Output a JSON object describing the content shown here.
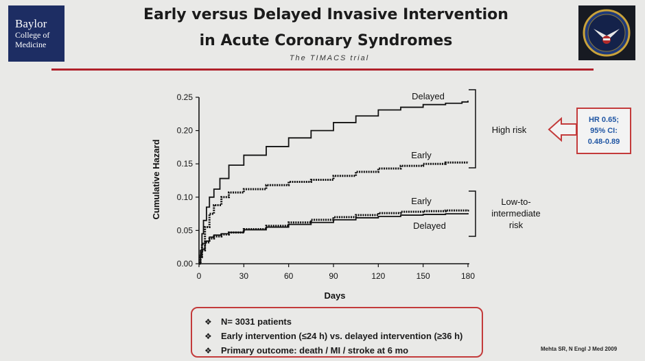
{
  "header": {
    "logo_left": {
      "line1": "Baylor",
      "line2": "College of",
      "line3": "Medicine"
    },
    "logo_right_icon": "veterans-affairs-seal-icon",
    "title_line1": "Early versus Delayed Invasive Intervention",
    "title_line2": "in Acute Coronary Syndromes",
    "subtitle": "The TIMACS trial",
    "accent_color": "#b0202a"
  },
  "chart_data": {
    "type": "line",
    "xlabel": "Days",
    "ylabel": "Cumulative Hazard",
    "xlim": [
      0,
      180
    ],
    "ylim": [
      0,
      0.25
    ],
    "xticks": [
      0,
      30,
      60,
      90,
      120,
      150,
      180
    ],
    "yticks": [
      0.0,
      0.05,
      0.1,
      0.15,
      0.2,
      0.25
    ],
    "ytick_labels": [
      "0.00",
      "0.05",
      "0.10",
      "0.15",
      "0.20",
      "0.25"
    ],
    "grid": false,
    "series": [
      {
        "name": "Delayed",
        "group": "High risk",
        "style": "solid",
        "x": [
          0,
          1,
          2,
          3,
          5,
          7,
          10,
          14,
          20,
          30,
          45,
          60,
          75,
          90,
          105,
          120,
          135,
          150,
          165,
          176,
          180
        ],
        "y": [
          0,
          0.02,
          0.045,
          0.065,
          0.085,
          0.1,
          0.112,
          0.128,
          0.148,
          0.163,
          0.176,
          0.189,
          0.2,
          0.212,
          0.222,
          0.231,
          0.235,
          0.239,
          0.241,
          0.243,
          0.245
        ]
      },
      {
        "name": "Early",
        "group": "High risk",
        "style": "dotted",
        "x": [
          0,
          1,
          2,
          4,
          7,
          10,
          15,
          20,
          30,
          45,
          60,
          75,
          90,
          105,
          120,
          135,
          150,
          165,
          180
        ],
        "y": [
          0,
          0.015,
          0.03,
          0.055,
          0.075,
          0.088,
          0.1,
          0.107,
          0.112,
          0.118,
          0.123,
          0.126,
          0.132,
          0.138,
          0.143,
          0.147,
          0.15,
          0.152,
          0.153
        ]
      },
      {
        "name": "Early",
        "group": "Low-to-intermediate risk",
        "style": "dotted",
        "x": [
          0,
          1,
          2,
          4,
          7,
          10,
          15,
          20,
          30,
          45,
          60,
          75,
          90,
          105,
          120,
          135,
          150,
          165,
          180
        ],
        "y": [
          0,
          0.01,
          0.02,
          0.032,
          0.038,
          0.041,
          0.044,
          0.047,
          0.052,
          0.057,
          0.062,
          0.066,
          0.07,
          0.073,
          0.076,
          0.078,
          0.079,
          0.08,
          0.081
        ]
      },
      {
        "name": "Delayed",
        "group": "Low-to-intermediate risk",
        "style": "solid",
        "x": [
          0,
          1,
          2,
          4,
          7,
          10,
          15,
          20,
          30,
          45,
          60,
          75,
          90,
          105,
          120,
          135,
          150,
          165,
          180
        ],
        "y": [
          0,
          0.01,
          0.022,
          0.034,
          0.04,
          0.043,
          0.045,
          0.047,
          0.051,
          0.055,
          0.059,
          0.062,
          0.066,
          0.069,
          0.071,
          0.073,
          0.074,
          0.075,
          0.076
        ]
      }
    ],
    "series_labels": [
      "Delayed",
      "Early",
      "Early",
      "Delayed"
    ],
    "groups": [
      {
        "label_lines": [
          "High risk"
        ]
      },
      {
        "label_lines": [
          "Low-to-",
          "intermediate",
          "risk"
        ]
      }
    ]
  },
  "annotation": {
    "hr_lines": [
      "HR 0.65;",
      "95% CI:",
      "0.48-0.89"
    ],
    "text_color": "#1f55a3",
    "border_color": "#c33a3a",
    "arrow_icon": "left-arrow-icon"
  },
  "summary": {
    "bullet": "❖",
    "items": [
      "N= 3031 patients",
      "Early intervention (≤24 h) vs. delayed intervention (≥36 h)",
      "Primary outcome: death / MI / stroke at 6 mo"
    ]
  },
  "citation": "Mehta SR, N Engl J Med 2009"
}
